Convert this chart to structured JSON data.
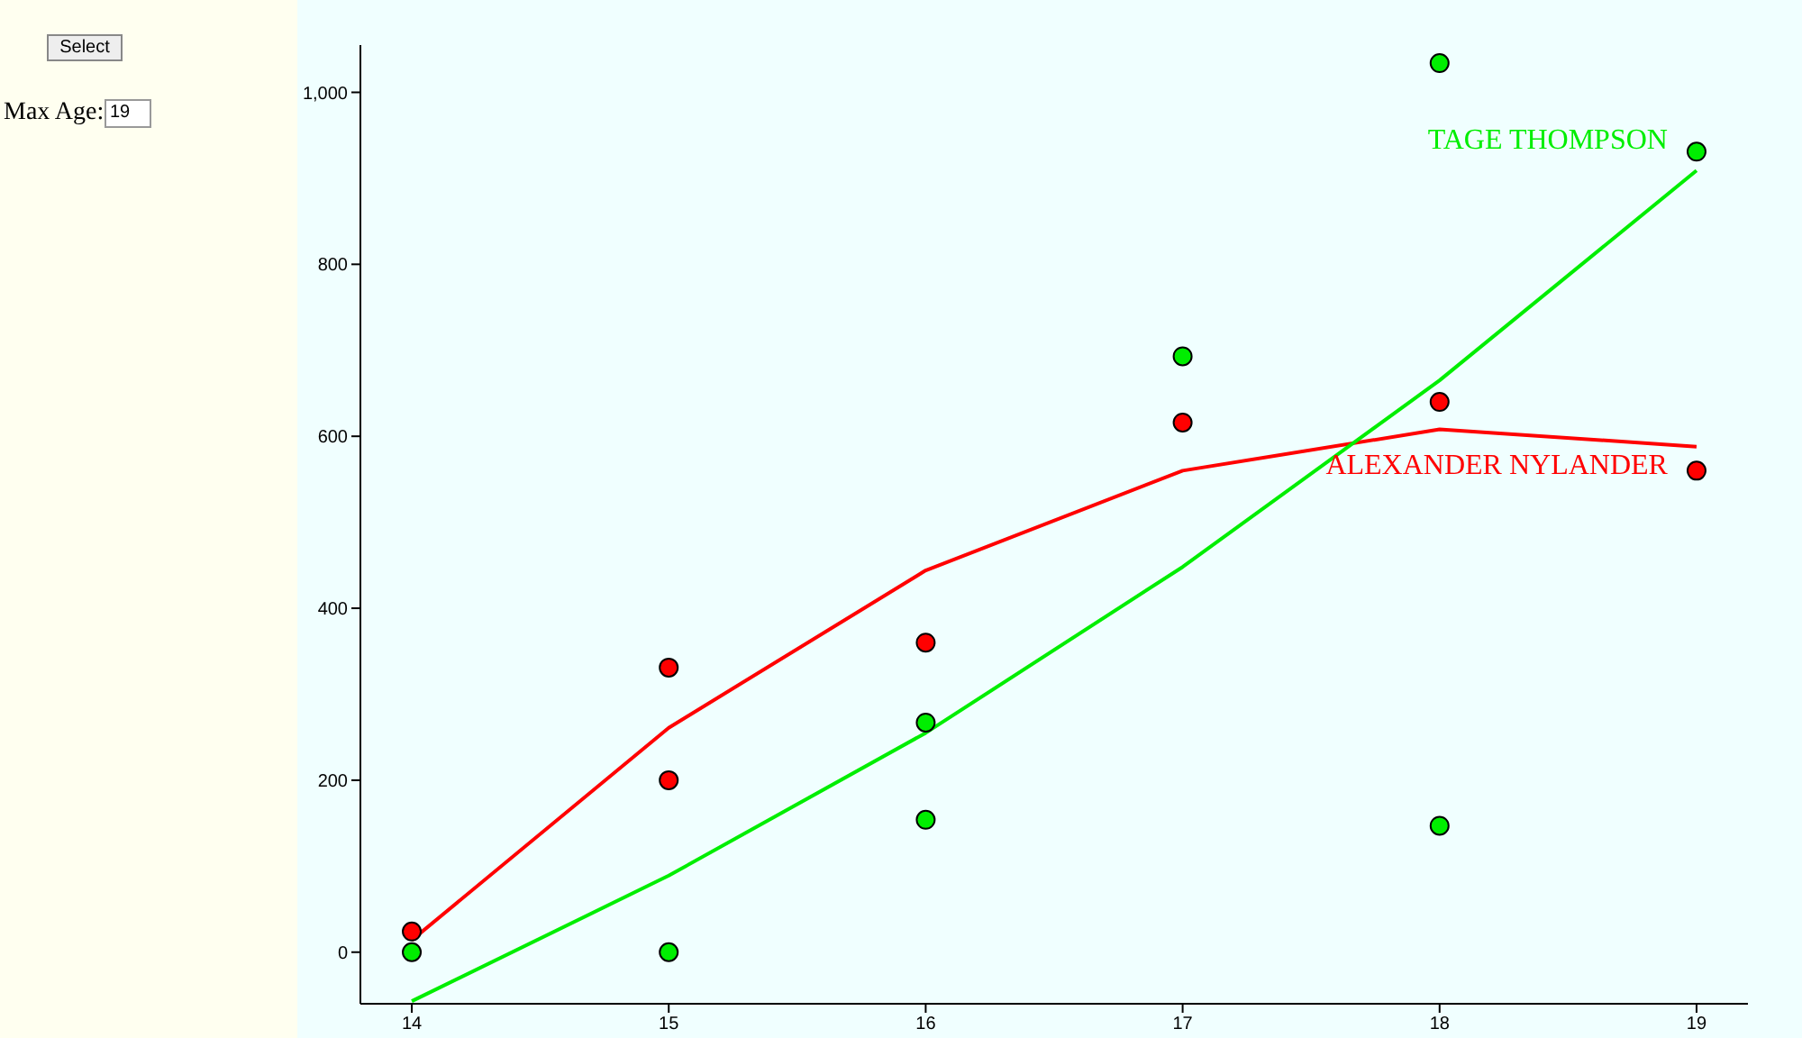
{
  "chart_data": {
    "type": "scatter",
    "annotations": [
      "Select",
      "Max Age:",
      "19"
    ],
    "xlim": [
      13.8,
      19.2
    ],
    "xticks": [
      14,
      15,
      16,
      17,
      18,
      19
    ],
    "ylim": [
      -60,
      1055
    ],
    "yticks": [
      0,
      200,
      400,
      600,
      800,
      {
        "value": 1000,
        "label": "1,000"
      }
    ],
    "grid": false,
    "legend": false,
    "series": [
      {
        "color": "#ff0000",
        "marker": "circle",
        "x": [
          14,
          15,
          15,
          16,
          17,
          18,
          19
        ],
        "values": [
          24,
          331,
          200,
          360,
          616,
          640,
          560
        ]
      },
      {
        "color": "#00ee00",
        "marker": "circle",
        "x": [
          14,
          15,
          16,
          16,
          17,
          18,
          18,
          19
        ],
        "values": [
          0,
          0,
          267,
          154,
          693,
          1034,
          147,
          931
        ]
      },
      {
        "type": "line",
        "name": "ALEXANDER NYLANDER",
        "color": "#ff0000",
        "marker": "none",
        "x": [
          14,
          15,
          16,
          17,
          18,
          19
        ],
        "values": [
          14,
          261,
          444,
          560,
          608,
          588
        ]
      },
      {
        "type": "line",
        "name": "TAGE THOMPSON",
        "color": "#00ee00",
        "marker": "none",
        "x": [
          14,
          15,
          16,
          17,
          18,
          19
        ],
        "values": [
          -57,
          89,
          255,
          448,
          665,
          909
        ]
      }
    ]
  }
}
